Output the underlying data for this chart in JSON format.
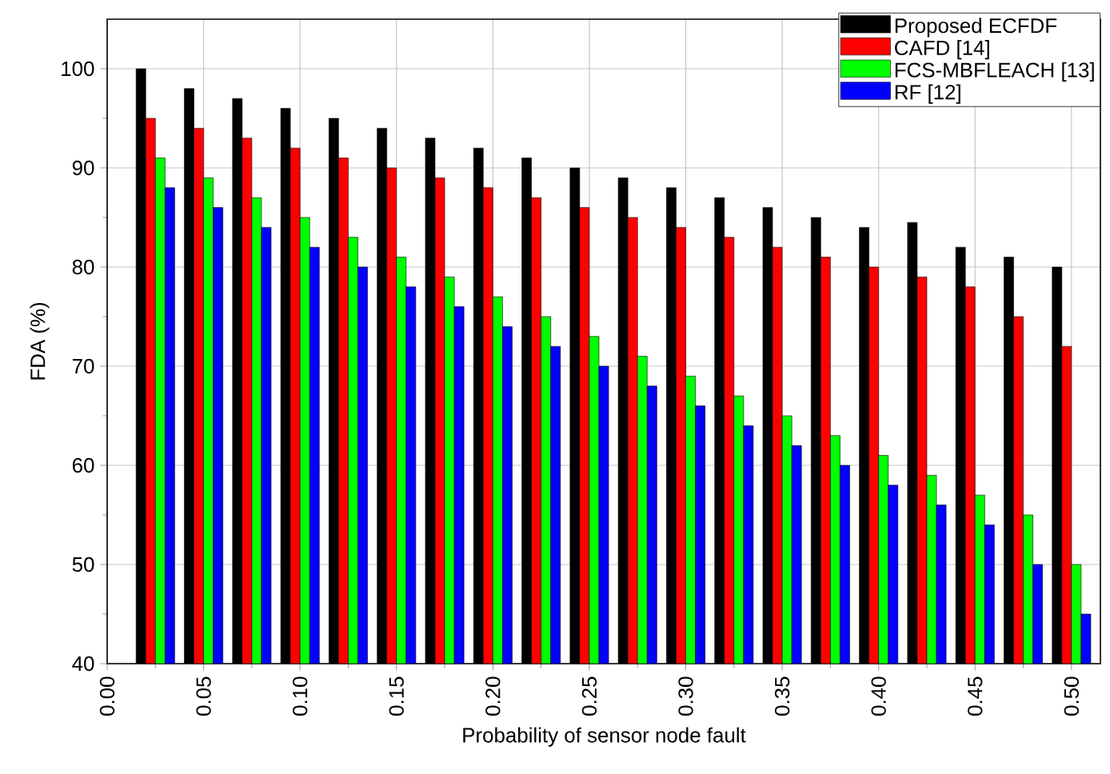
{
  "chart_data": {
    "type": "bar",
    "xlabel": "Probability of sensor node fault",
    "ylabel": "FDA (%)",
    "x": [
      0.025,
      0.05,
      0.075,
      0.1,
      0.125,
      0.15,
      0.175,
      0.2,
      0.225,
      0.25,
      0.275,
      0.3,
      0.325,
      0.35,
      0.375,
      0.4,
      0.425,
      0.45,
      0.475,
      0.5
    ],
    "series": [
      {
        "name": "Proposed ECFDF",
        "color": "#000000",
        "values": [
          100,
          98,
          97,
          96,
          95,
          94,
          93,
          92,
          91,
          90,
          89,
          88,
          87,
          86,
          85,
          84,
          84.5,
          82,
          81,
          80
        ]
      },
      {
        "name": "CAFD [14]",
        "color": "#ff0000",
        "values": [
          95,
          94,
          93,
          92,
          91,
          90,
          89,
          88,
          87,
          86,
          85,
          84,
          83,
          82,
          81,
          80,
          79,
          78,
          75,
          72
        ]
      },
      {
        "name": "FCS-MBFLEACH [13]",
        "color": "#00ff00",
        "values": [
          91,
          89,
          87,
          85,
          83,
          81,
          79,
          77,
          75,
          73,
          71,
          69,
          67,
          65,
          63,
          61,
          59,
          57,
          55,
          50
        ]
      },
      {
        "name": "RF [12]",
        "color": "#0000ff",
        "values": [
          88,
          86,
          84,
          82,
          80,
          78,
          76,
          74,
          72,
          70,
          68,
          66,
          64,
          62,
          60,
          58,
          56,
          54,
          50,
          45
        ]
      }
    ],
    "xlim": [
      0,
      0.515
    ],
    "ylim": [
      40,
      105
    ],
    "xticks": [
      {
        "value": 0,
        "label": "0.00"
      },
      {
        "value": 0.05,
        "label": "0.05"
      },
      {
        "value": 0.1,
        "label": "0.10"
      },
      {
        "value": 0.15,
        "label": "0.15"
      },
      {
        "value": 0.2,
        "label": "0.20"
      },
      {
        "value": 0.25,
        "label": "0.25"
      },
      {
        "value": 0.3,
        "label": "0.30"
      },
      {
        "value": 0.35,
        "label": "0.35"
      },
      {
        "value": 0.4,
        "label": "0.40"
      },
      {
        "value": 0.45,
        "label": "0.45"
      },
      {
        "value": 0.5,
        "label": "0.50"
      }
    ],
    "yticks": [
      40,
      50,
      60,
      70,
      80,
      90,
      100
    ],
    "grid": true,
    "legend": "top right"
  }
}
